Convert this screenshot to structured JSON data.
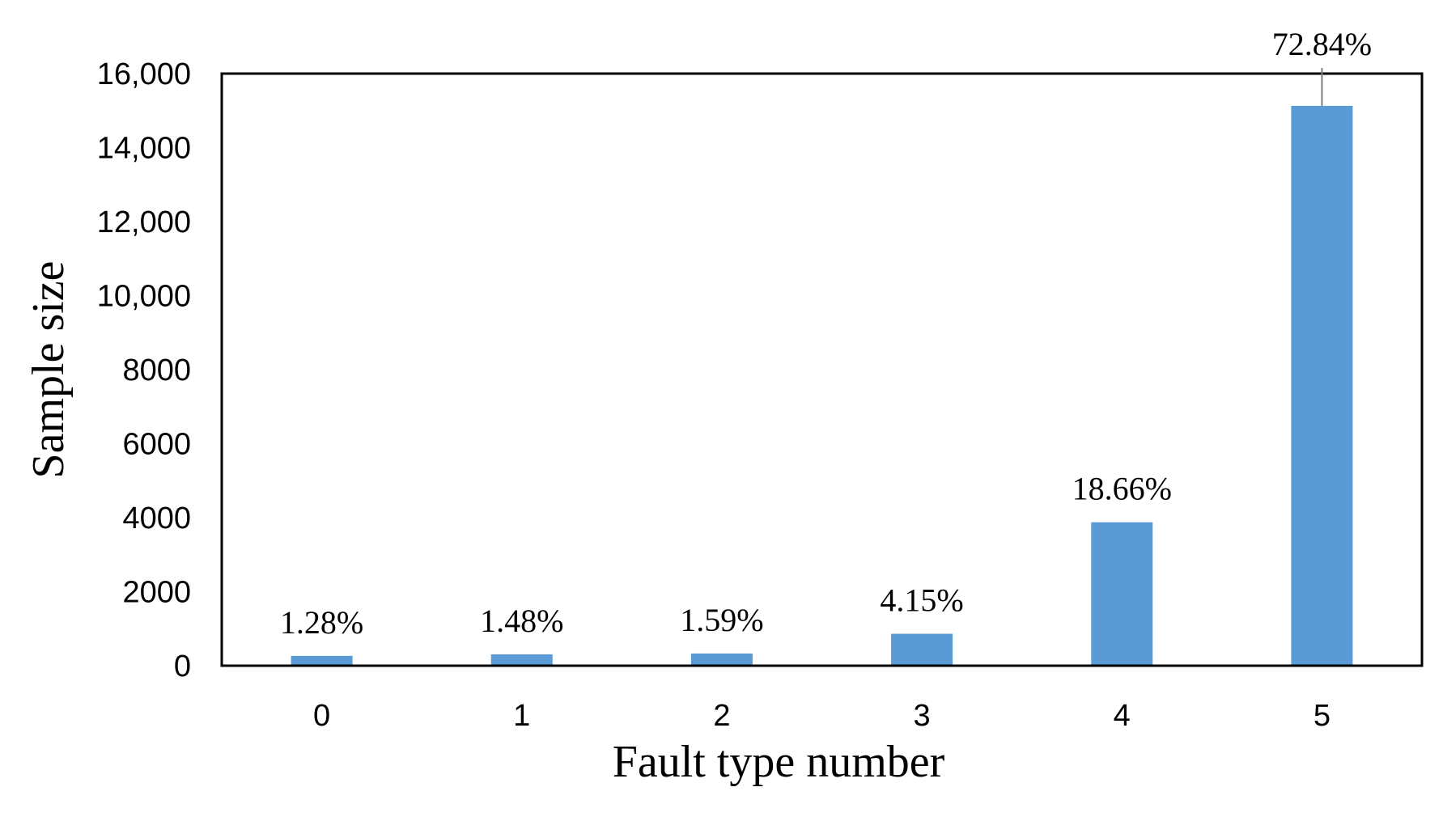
{
  "chart_data": {
    "type": "bar",
    "title": "",
    "xlabel": "Fault type number",
    "ylabel": "Sample size",
    "categories": [
      "0",
      "1",
      "2",
      "3",
      "4",
      "5"
    ],
    "values": [
      265,
      307,
      330,
      862,
      3876,
      15128
    ],
    "data_labels": [
      "1.28%",
      "1.48%",
      "1.59%",
      "4.15%",
      "18.66%",
      "72.84%"
    ],
    "ylim": [
      0,
      16000
    ],
    "yticks": [
      0,
      2000,
      4000,
      6000,
      8000,
      10000,
      12000,
      14000,
      16000
    ],
    "ytick_labels": [
      "0",
      "2000",
      "4000",
      "6000",
      "8000",
      "10,000",
      "12,000",
      "14,000",
      "16,000"
    ],
    "grid": false,
    "legend": "none",
    "bar_color": "#5B9BD5",
    "leader_line_color": "#7f7f7f"
  }
}
